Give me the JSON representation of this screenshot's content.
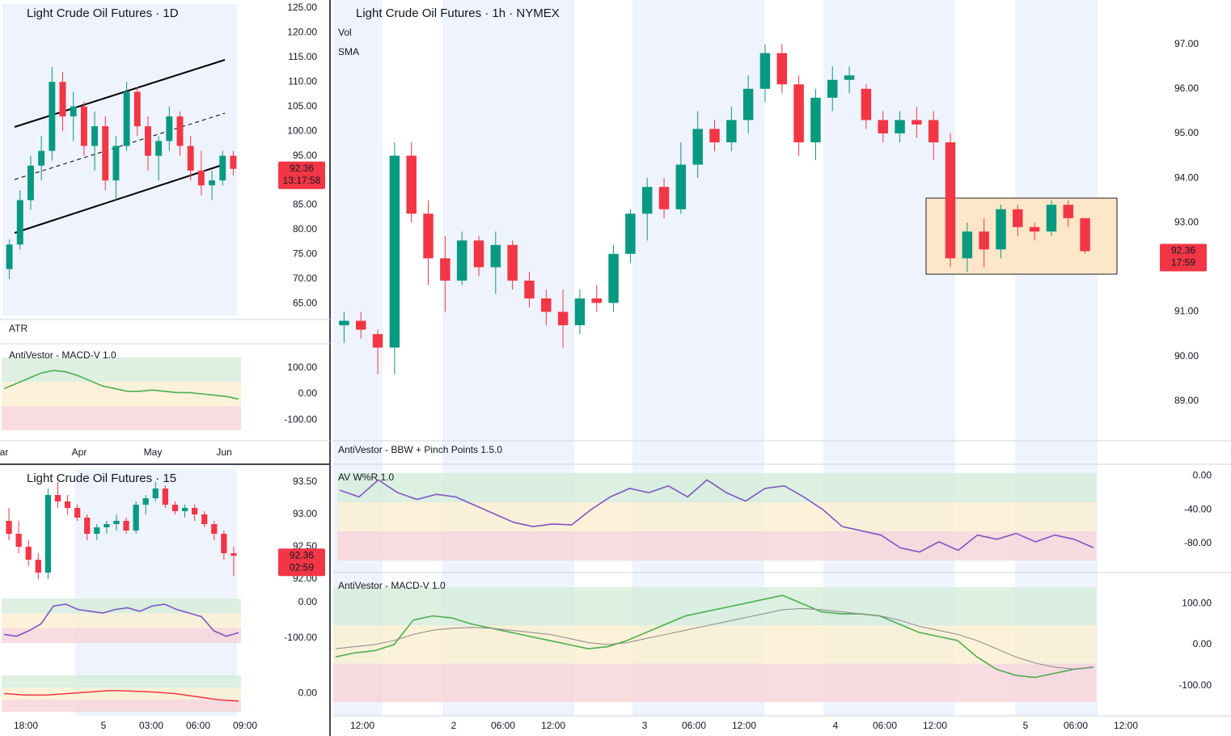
{
  "chart_data": [
    {
      "type": "candlestick",
      "title": "Light Crude Oil Futures · 1h · NYMEX",
      "vol_label": "Vol",
      "sma_label": "SMA",
      "indicator_label": "AntiVestor - BBW + Pinch Points 1.5.0",
      "ylim": [
        88.2,
        97.9
      ],
      "yticks": [
        {
          "value": 89,
          "label": "89.00"
        },
        {
          "value": 90,
          "label": "90.00"
        },
        {
          "value": 91,
          "label": "91.00"
        },
        {
          "value": 92,
          "label": "92.00"
        },
        {
          "value": 93,
          "label": "93.00"
        },
        {
          "value": 94,
          "label": "94.00"
        },
        {
          "value": 95,
          "label": "95.00"
        },
        {
          "value": 96,
          "label": "96.00"
        },
        {
          "value": 97,
          "label": "97.00"
        }
      ],
      "xticks": [
        "12:00",
        "2",
        "06:00",
        "12:00",
        "3",
        "06:00",
        "12:00",
        "4",
        "06:00",
        "12:00",
        "5",
        "06:00",
        "12:00"
      ],
      "last_price": 92.36,
      "timer": "17:59",
      "candles": [
        [
          90.7,
          91.0,
          90.3,
          90.8
        ],
        [
          90.8,
          91.0,
          90.4,
          90.6
        ],
        [
          90.5,
          90.6,
          89.6,
          90.2
        ],
        [
          90.2,
          94.8,
          89.6,
          94.5
        ],
        [
          94.5,
          94.8,
          93.0,
          93.2
        ],
        [
          93.2,
          93.5,
          91.6,
          92.2
        ],
        [
          92.2,
          92.7,
          91.0,
          91.7
        ],
        [
          91.7,
          92.8,
          91.6,
          92.6
        ],
        [
          92.6,
          92.7,
          91.8,
          92.0
        ],
        [
          92.0,
          92.8,
          91.4,
          92.5
        ],
        [
          92.5,
          92.6,
          91.5,
          91.7
        ],
        [
          91.7,
          91.9,
          91.1,
          91.3
        ],
        [
          91.3,
          91.5,
          90.7,
          91.0
        ],
        [
          91.0,
          91.5,
          90.2,
          90.7
        ],
        [
          90.7,
          91.5,
          90.5,
          91.3
        ],
        [
          91.3,
          91.6,
          91.0,
          91.2
        ],
        [
          91.2,
          92.5,
          91.0,
          92.3
        ],
        [
          92.3,
          93.3,
          92.1,
          93.2
        ],
        [
          93.2,
          94.0,
          92.6,
          93.8
        ],
        [
          93.8,
          94.0,
          93.1,
          93.3
        ],
        [
          93.3,
          94.8,
          93.2,
          94.3
        ],
        [
          94.3,
          95.5,
          94.0,
          95.1
        ],
        [
          95.1,
          95.3,
          94.6,
          94.8
        ],
        [
          94.8,
          95.6,
          94.6,
          95.3
        ],
        [
          95.3,
          96.3,
          95.0,
          96.0
        ],
        [
          96.0,
          97.0,
          95.7,
          96.8
        ],
        [
          96.8,
          97.0,
          95.9,
          96.1
        ],
        [
          96.1,
          96.3,
          94.5,
          94.8
        ],
        [
          94.8,
          96.0,
          94.4,
          95.8
        ],
        [
          95.8,
          96.5,
          95.5,
          96.2
        ],
        [
          96.2,
          96.5,
          95.9,
          96.3
        ],
        [
          96.0,
          96.1,
          95.1,
          95.3
        ],
        [
          95.3,
          95.5,
          94.8,
          95.0
        ],
        [
          95.0,
          95.5,
          94.8,
          95.3
        ],
        [
          95.3,
          95.6,
          94.9,
          95.2
        ],
        [
          95.3,
          95.5,
          94.4,
          94.8
        ],
        [
          94.8,
          95.0,
          92.0,
          92.2
        ],
        [
          92.2,
          93.0,
          91.9,
          92.8
        ],
        [
          92.8,
          93.1,
          92.0,
          92.4
        ],
        [
          92.4,
          93.4,
          92.2,
          93.3
        ],
        [
          93.3,
          93.4,
          92.7,
          92.9
        ],
        [
          92.9,
          93.0,
          92.6,
          92.8
        ],
        [
          92.8,
          93.5,
          92.7,
          93.4
        ],
        [
          93.4,
          93.5,
          92.9,
          93.1
        ],
        [
          93.1,
          93.1,
          92.3,
          92.36
        ]
      ]
    },
    {
      "type": "line",
      "title": "AV W%R 1.0",
      "ylim": [
        -100,
        3
      ],
      "yticks": [
        {
          "value": 0,
          "label": "0.00"
        },
        {
          "value": -40,
          "label": "-40.00"
        },
        {
          "value": -80,
          "label": "-80.00"
        }
      ],
      "series": [
        {
          "color": "#7e57c2",
          "values": [
            -17,
            -25,
            -5,
            -20,
            -28,
            -22,
            -25,
            -35,
            -45,
            -55,
            -60,
            -57,
            -58,
            -40,
            -25,
            -15,
            -20,
            -12,
            -25,
            -5,
            -20,
            -30,
            -15,
            -12,
            -25,
            -40,
            -60,
            -65,
            -70,
            -85,
            -90,
            -78,
            -88,
            -70,
            -75,
            -68,
            -78,
            -70,
            -75,
            -85
          ]
        }
      ]
    },
    {
      "type": "line",
      "title": "AntiVestor - MACD-V 1.0",
      "ylim": [
        -140,
        140
      ],
      "yticks": [
        {
          "value": 100,
          "label": "100.00"
        },
        {
          "value": 0,
          "label": "0.00"
        },
        {
          "value": -100,
          "label": "-100.00"
        }
      ],
      "series": [
        {
          "color": "#4caf50",
          "values": [
            -30,
            -20,
            -15,
            0,
            60,
            70,
            65,
            50,
            40,
            30,
            20,
            10,
            0,
            -10,
            -5,
            10,
            30,
            50,
            70,
            80,
            90,
            100,
            110,
            120,
            100,
            80,
            75,
            75,
            70,
            50,
            30,
            20,
            10,
            -30,
            -60,
            -75,
            -80,
            -70,
            -60,
            -55
          ]
        },
        {
          "color": "#888888",
          "values": [
            -10,
            -5,
            0,
            10,
            25,
            35,
            40,
            42,
            40,
            35,
            30,
            25,
            15,
            5,
            0,
            5,
            15,
            25,
            35,
            45,
            55,
            65,
            75,
            85,
            88,
            85,
            80,
            75,
            70,
            60,
            45,
            35,
            25,
            10,
            -10,
            -30,
            -45,
            -55,
            -60,
            -55
          ]
        }
      ]
    },
    {
      "type": "candlestick",
      "title": "Light Crude Oil Futures · 1D",
      "indicator_label": "ATR",
      "ylim": [
        62.6,
        125.8
      ],
      "yticks": [
        {
          "value": 65,
          "label": "65.00"
        },
        {
          "value": 70,
          "label": "70.00"
        },
        {
          "value": 75,
          "label": "75.00"
        },
        {
          "value": 80,
          "label": "80.00"
        },
        {
          "value": 85,
          "label": "85.00"
        },
        {
          "value": 90,
          "label": "90.00"
        },
        {
          "value": 95,
          "label": "95.00"
        },
        {
          "value": 100,
          "label": "100.00"
        },
        {
          "value": 105,
          "label": "105.00"
        },
        {
          "value": 110,
          "label": "110.00"
        },
        {
          "value": 115,
          "label": "115.00"
        },
        {
          "value": 120,
          "label": "120.00"
        },
        {
          "value": 125,
          "label": "125.00"
        }
      ],
      "xticks": [
        "ar",
        "Apr",
        "May",
        "Jun"
      ],
      "last_price": 92.36,
      "timer": "13:17:58",
      "candles": [
        [
          72,
          78,
          70,
          77
        ],
        [
          77,
          88,
          76,
          86
        ],
        [
          86,
          95,
          84,
          93
        ],
        [
          93,
          99,
          90,
          96
        ],
        [
          96,
          113,
          94,
          110
        ],
        [
          110,
          112,
          100,
          103
        ],
        [
          103,
          108,
          98,
          105
        ],
        [
          105,
          106,
          95,
          97
        ],
        [
          97,
          104,
          92,
          101
        ],
        [
          101,
          103,
          88,
          90
        ],
        [
          90,
          99,
          86,
          97
        ],
        [
          97,
          110,
          96,
          108
        ],
        [
          108,
          109,
          99,
          101
        ],
        [
          101,
          103,
          92,
          95
        ],
        [
          95,
          99,
          90,
          98
        ],
        [
          98,
          105,
          96,
          103
        ],
        [
          103,
          104,
          95,
          97
        ],
        [
          97,
          99,
          90,
          92
        ],
        [
          92,
          96,
          87,
          89
        ],
        [
          89,
          92,
          86,
          90
        ],
        [
          90,
          96,
          89,
          95
        ],
        [
          95,
          96,
          91,
          92.36
        ]
      ]
    },
    {
      "type": "line",
      "title": "AntiVestor - MACD-V 1.0",
      "ylim": [
        -140,
        140
      ],
      "yticks": [
        {
          "value": 100,
          "label": "100.00"
        },
        {
          "value": 0,
          "label": "0.00"
        },
        {
          "value": -100,
          "label": "-100.00"
        }
      ],
      "series": [
        {
          "color": "#4caf50",
          "values": [
            20,
            40,
            60,
            80,
            90,
            85,
            70,
            50,
            30,
            20,
            10,
            10,
            15,
            10,
            5,
            5,
            0,
            -5,
            -10,
            -20
          ]
        }
      ]
    },
    {
      "type": "candlestick",
      "title": "Light Crude Oil Futures · 15",
      "ylim": [
        91.7,
        93.7
      ],
      "yticks": [
        {
          "value": 92,
          "label": "92.00"
        },
        {
          "value": 92.5,
          "label": "92.50"
        },
        {
          "value": 93,
          "label": "93.00"
        },
        {
          "value": 93.5,
          "label": "93.50"
        }
      ],
      "xticks": [
        "18:00",
        "5",
        "03:00",
        "06:00",
        "09:00"
      ],
      "last_price": 92.36,
      "timer": "02:59",
      "candles": [
        [
          92.9,
          93.1,
          92.6,
          92.7
        ],
        [
          92.7,
          92.9,
          92.4,
          92.5
        ],
        [
          92.5,
          92.6,
          92.2,
          92.3
        ],
        [
          92.3,
          92.4,
          92.0,
          92.1
        ],
        [
          92.1,
          93.4,
          92.0,
          93.3
        ],
        [
          93.3,
          93.5,
          93.1,
          93.2
        ],
        [
          93.2,
          93.3,
          93.0,
          93.1
        ],
        [
          93.1,
          93.15,
          92.9,
          92.95
        ],
        [
          92.95,
          93.0,
          92.6,
          92.7
        ],
        [
          92.7,
          92.85,
          92.6,
          92.8
        ],
        [
          92.8,
          92.9,
          92.7,
          92.85
        ],
        [
          92.85,
          93.0,
          92.75,
          92.9
        ],
        [
          92.9,
          92.95,
          92.7,
          92.75
        ],
        [
          92.75,
          93.2,
          92.7,
          93.15
        ],
        [
          93.15,
          93.3,
          93.0,
          93.25
        ],
        [
          93.25,
          93.5,
          93.2,
          93.4
        ],
        [
          93.4,
          93.45,
          93.1,
          93.15
        ],
        [
          93.15,
          93.2,
          93.0,
          93.05
        ],
        [
          93.05,
          93.15,
          92.95,
          93.1
        ],
        [
          93.1,
          93.15,
          92.9,
          93.0
        ],
        [
          93.0,
          93.05,
          92.8,
          92.85
        ],
        [
          92.85,
          92.9,
          92.6,
          92.7
        ],
        [
          92.7,
          92.75,
          92.3,
          92.4
        ],
        [
          92.4,
          92.5,
          92.05,
          92.36
        ]
      ]
    },
    {
      "type": "line",
      "ylim": [
        -114,
        11
      ],
      "yticks": [
        {
          "value": 0,
          "label": "0.00"
        },
        {
          "value": -100,
          "label": "-100.00"
        }
      ],
      "series": [
        {
          "color": "#7e57c2",
          "values": [
            -90,
            -95,
            -80,
            -60,
            -10,
            -5,
            -20,
            -25,
            -30,
            -20,
            -15,
            -25,
            -10,
            -5,
            -20,
            -30,
            -40,
            -80,
            -95,
            -85
          ]
        }
      ]
    },
    {
      "type": "line",
      "ylim": [
        -60,
        60
      ],
      "yticks": [
        {
          "value": 0,
          "label": "0.00"
        }
      ],
      "series": [
        {
          "color": "#f23645",
          "values": [
            0,
            -5,
            -5,
            0,
            5,
            10,
            8,
            5,
            0,
            -10,
            -20,
            -25
          ]
        }
      ]
    }
  ]
}
